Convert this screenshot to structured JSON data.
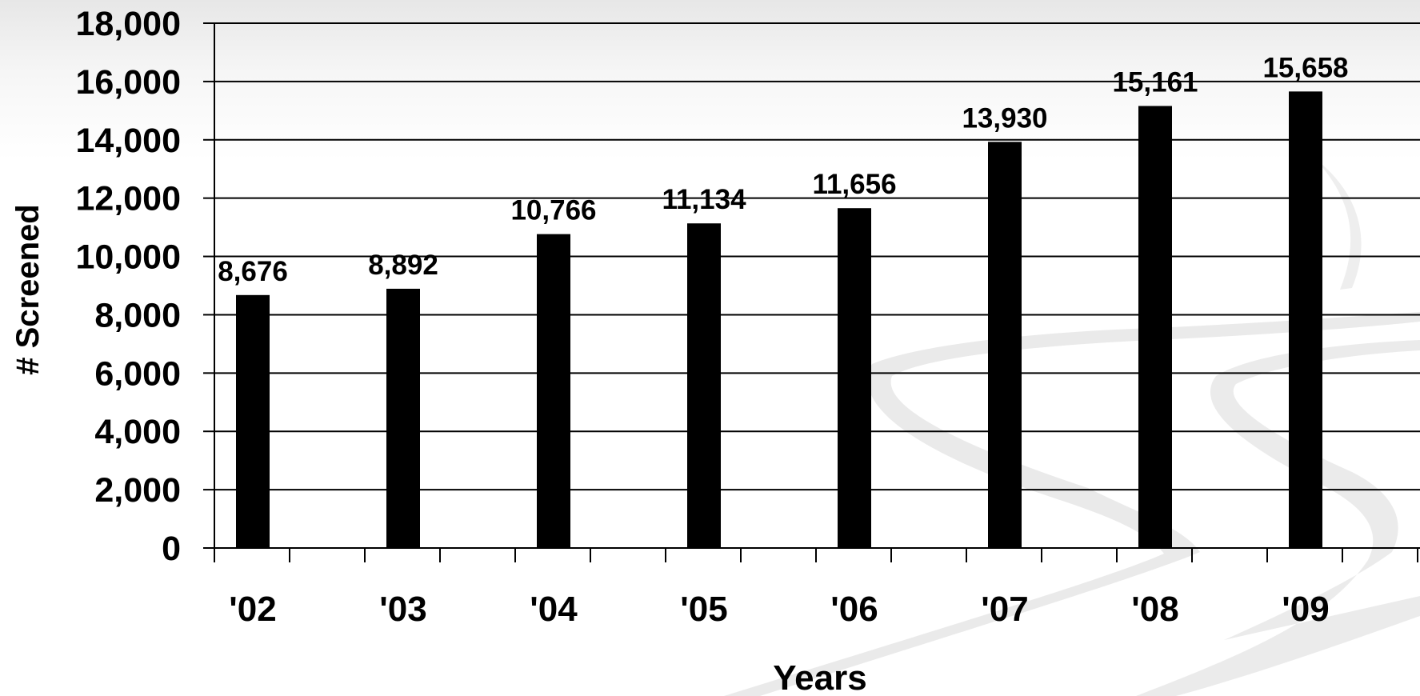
{
  "chart_data": {
    "type": "bar",
    "categories": [
      "'02",
      "'03",
      "'04",
      "'05",
      "'06",
      "'07",
      "'08",
      "'09"
    ],
    "values": [
      8676,
      8892,
      10766,
      11134,
      11656,
      13930,
      15161,
      15658
    ],
    "data_labels": [
      "8,676",
      "8,892",
      "10,766",
      "11,134",
      "11,656",
      "13,930",
      "15,161",
      "15,658"
    ],
    "y_ticks": [
      0,
      2000,
      4000,
      6000,
      8000,
      10000,
      12000,
      14000,
      16000,
      18000
    ],
    "y_tick_labels": [
      "0",
      "2,000",
      "4,000",
      "6,000",
      "8,000",
      "10,000",
      "12,000",
      "14,000",
      "16,000",
      "18,000"
    ],
    "ylim": [
      0,
      18000
    ],
    "xlabel": "Years",
    "ylabel": "# Screened",
    "title": "",
    "grid": true,
    "legend": false,
    "colors": {
      "bar": "#000000",
      "grid": "#000000",
      "text": "#000000"
    }
  }
}
